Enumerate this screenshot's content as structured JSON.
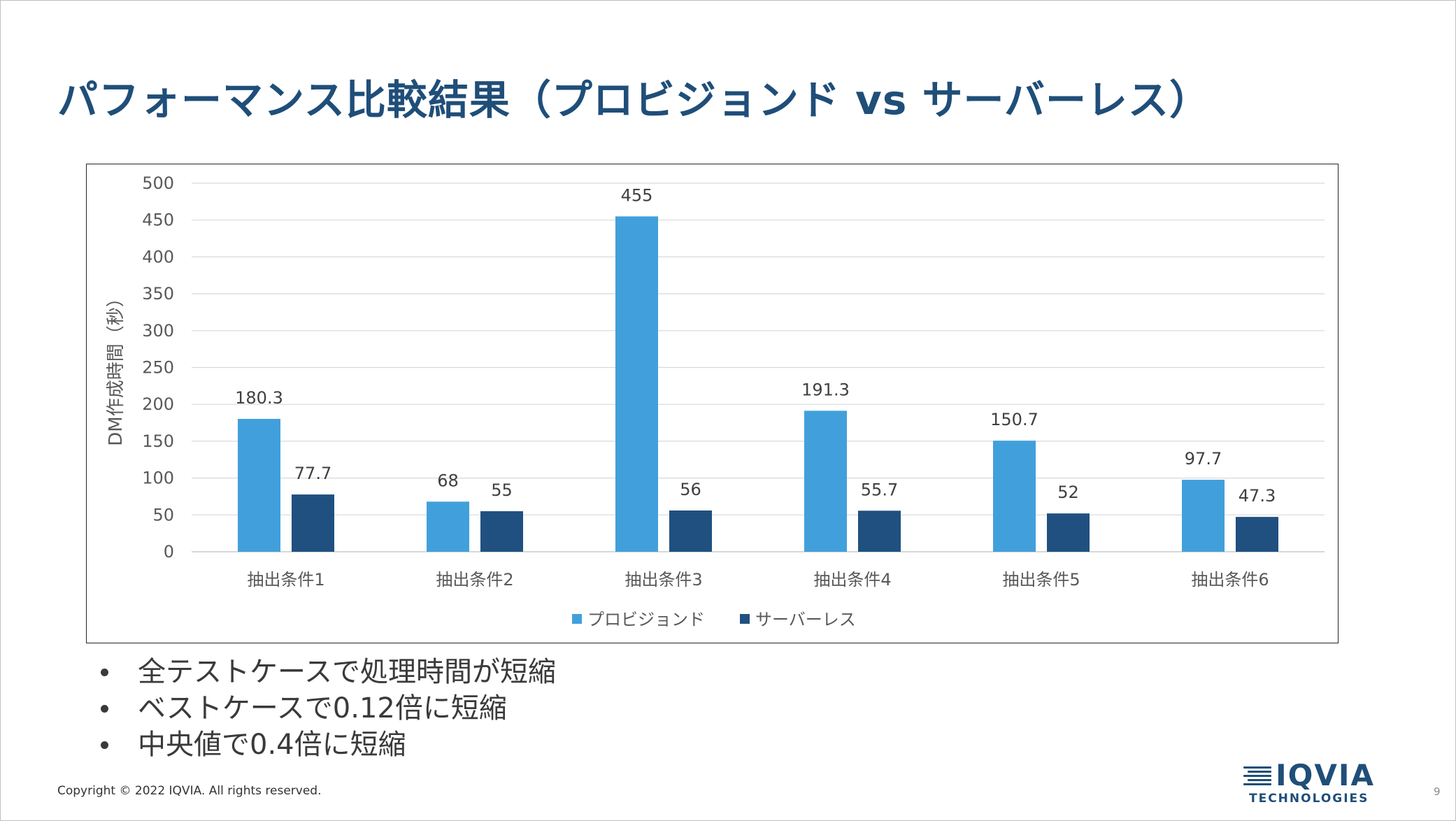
{
  "slide": {
    "title": "パフォーマンス比較結果（プロビジョンド vs サーバーレス）",
    "bullets": [
      "全テストケースで処理時間が短縮",
      "ベストケースで0.12倍に短縮",
      "中央値で0.4倍に短縮"
    ],
    "copyright": "Copyright © 2022 IQVIA. All rights reserved.",
    "logo": {
      "brand": "IQVIA",
      "sub": "TECHNOLOGIES"
    },
    "page_number": "9"
  },
  "chart_data": {
    "type": "bar",
    "title": "",
    "xlabel": "",
    "ylabel": "DM作成時間（秒）",
    "ylim": [
      0,
      500
    ],
    "yticks": [
      0,
      50,
      100,
      150,
      200,
      250,
      300,
      350,
      400,
      450,
      500
    ],
    "grid": true,
    "legend_position": "bottom",
    "categories": [
      "抽出条件1",
      "抽出条件2",
      "抽出条件3",
      "抽出条件4",
      "抽出条件5",
      "抽出条件6"
    ],
    "series": [
      {
        "name": "プロビジョンド",
        "color": "#41a0db",
        "values": [
          180.3,
          68,
          455,
          191.3,
          150.7,
          97.7
        ]
      },
      {
        "name": "サーバーレス",
        "color": "#1f5080",
        "values": [
          77.7,
          55,
          56,
          55.7,
          52,
          47.3
        ]
      }
    ]
  }
}
